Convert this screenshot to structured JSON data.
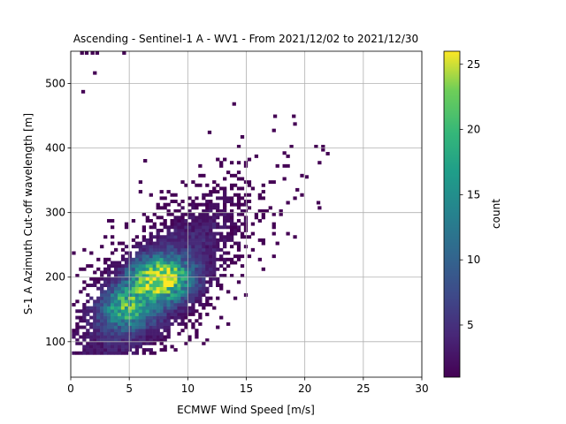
{
  "chart_data": {
    "type": "heatmap",
    "title": "Ascending - Sentinel-1 A - WV1 - From 2021/12/02 to 2021/12/30",
    "xlabel": "ECMWF Wind Speed [m/s]",
    "ylabel": "S-1 A Azimuth Cut-off wavelength [m]",
    "xlim": [
      0,
      30
    ],
    "ylim": [
      45,
      550
    ],
    "xticks": [
      0,
      5,
      10,
      15,
      20,
      25,
      30
    ],
    "yticks": [
      100,
      200,
      300,
      400,
      500
    ],
    "grid": true,
    "colormap": "viridis",
    "colorbar": {
      "label": "count",
      "range": [
        1,
        26
      ],
      "ticks": [
        5,
        10,
        15,
        20,
        25
      ]
    },
    "distribution": {
      "description_free": true,
      "core_centers": [
        [
          4.5,
          150
        ],
        [
          7.5,
          195
        ]
      ],
      "trend_slope_m_per_ms": 15,
      "peak_count": 25,
      "x_range": [
        0,
        22
      ],
      "y_range": [
        78,
        545
      ]
    },
    "outliers": [
      [
        0.8,
        545
      ],
      [
        1.2,
        545
      ],
      [
        1.7,
        545
      ],
      [
        2.1,
        545
      ],
      [
        4.4,
        545
      ],
      [
        0.9,
        485
      ],
      [
        1.9,
        514
      ],
      [
        13.8,
        466
      ],
      [
        17.3,
        447
      ],
      [
        18.9,
        447
      ],
      [
        11.7,
        422
      ],
      [
        21.8,
        389
      ],
      [
        6.2,
        378
      ],
      [
        20.0,
        353
      ],
      [
        19.2,
        333
      ],
      [
        21.0,
        313
      ],
      [
        18.4,
        313
      ]
    ]
  }
}
